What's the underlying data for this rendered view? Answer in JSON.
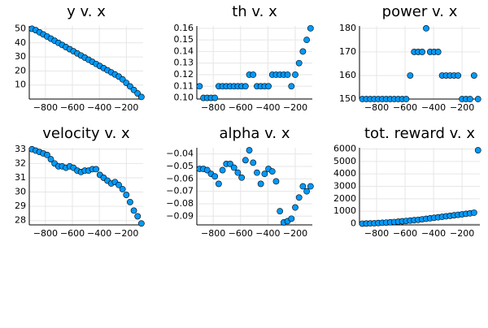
{
  "chart_data": [
    {
      "type": "scatter",
      "title": "y v. x",
      "color": "#009AFA",
      "grid": true,
      "x": [
        -900,
        -872,
        -844,
        -816,
        -788,
        -760,
        -732,
        -704,
        -676,
        -648,
        -620,
        -592,
        -564,
        -536,
        -508,
        -480,
        -452,
        -424,
        -396,
        -368,
        -340,
        -312,
        -284,
        -256,
        -228,
        -200,
        -172,
        -144,
        -116,
        -88
      ],
      "values": [
        50,
        49,
        47.5,
        46,
        44.5,
        43,
        41.5,
        40,
        38.5,
        37,
        35.5,
        34,
        32.5,
        31,
        29.5,
        28,
        26.5,
        25,
        23.5,
        22,
        20.5,
        19,
        17.5,
        16,
        14,
        11.5,
        9,
        6.5,
        4,
        1.5
      ],
      "xlim": [
        -920,
        -75
      ],
      "xticks": [
        {
          "value": -800,
          "label": "−800"
        },
        {
          "value": -600,
          "label": "−600"
        },
        {
          "value": -400,
          "label": "−400"
        },
        {
          "value": -200,
          "label": "−200"
        }
      ],
      "ylim": [
        0,
        52
      ],
      "yticks": [
        10,
        20,
        30,
        40,
        50
      ]
    },
    {
      "type": "scatter",
      "title": "th v. x",
      "color": "#009AFA",
      "grid": true,
      "x": [
        -900,
        -872,
        -844,
        -816,
        -788,
        -760,
        -732,
        -704,
        -676,
        -648,
        -620,
        -592,
        -564,
        -536,
        -508,
        -480,
        -452,
        -424,
        -396,
        -368,
        -340,
        -312,
        -284,
        -256,
        -228,
        -200,
        -172,
        -144,
        -116,
        -88
      ],
      "values": [
        0.11,
        0.1,
        0.1,
        0.1,
        0.1,
        0.11,
        0.11,
        0.11,
        0.11,
        0.11,
        0.11,
        0.11,
        0.11,
        0.12,
        0.12,
        0.11,
        0.11,
        0.11,
        0.11,
        0.12,
        0.12,
        0.12,
        0.12,
        0.12,
        0.11,
        0.12,
        0.13,
        0.14,
        0.15,
        0.16
      ],
      "xlim": [
        -920,
        -75
      ],
      "xticks": [
        {
          "value": -800,
          "label": "−800"
        },
        {
          "value": -600,
          "label": "−600"
        },
        {
          "value": -400,
          "label": "−400"
        },
        {
          "value": -200,
          "label": "−200"
        }
      ],
      "ylim": [
        0.099,
        0.162
      ],
      "yticks": [
        {
          "value": 0.1,
          "label": "0.10"
        },
        0.11,
        0.12,
        0.13,
        0.14,
        0.15,
        0.16
      ]
    },
    {
      "type": "scatter",
      "title": "power v. x",
      "color": "#009AFA",
      "grid": true,
      "x": [
        -900,
        -872,
        -844,
        -816,
        -788,
        -760,
        -732,
        -704,
        -676,
        -648,
        -620,
        -592,
        -564,
        -536,
        -508,
        -480,
        -452,
        -424,
        -396,
        -368,
        -340,
        -312,
        -284,
        -256,
        -228,
        -200,
        -172,
        -144,
        -116,
        -88
      ],
      "values": [
        150,
        150,
        150,
        150,
        150,
        150,
        150,
        150,
        150,
        150,
        150,
        150,
        160,
        170,
        170,
        170,
        180,
        170,
        170,
        170,
        160,
        160,
        160,
        160,
        160,
        150,
        150,
        150,
        160,
        150
      ],
      "xlim": [
        -920,
        -75
      ],
      "xticks": [
        {
          "value": -800,
          "label": "−800"
        },
        {
          "value": -600,
          "label": "−600"
        },
        {
          "value": -400,
          "label": "−400"
        },
        {
          "value": -200,
          "label": "−200"
        }
      ],
      "ylim": [
        150,
        181
      ],
      "yticks": [
        150,
        160,
        170,
        180
      ]
    },
    {
      "type": "scatter",
      "title": "velocity v. x",
      "color": "#009AFA",
      "grid": true,
      "x": [
        -900,
        -872,
        -844,
        -816,
        -788,
        -760,
        -732,
        -704,
        -676,
        -648,
        -620,
        -592,
        -564,
        -536,
        -508,
        -480,
        -452,
        -424,
        -396,
        -368,
        -340,
        -312,
        -284,
        -256,
        -228,
        -200,
        -172,
        -144,
        -116,
        -88
      ],
      "values": [
        33,
        32.9,
        32.8,
        32.7,
        32.6,
        32.3,
        32,
        31.8,
        31.8,
        31.7,
        31.8,
        31.7,
        31.5,
        31.4,
        31.5,
        31.5,
        31.6,
        31.6,
        31.2,
        31,
        30.8,
        30.6,
        30.7,
        30.5,
        30.2,
        29.8,
        29.3,
        28.7,
        28.3,
        27.8
      ],
      "xlim": [
        -920,
        -75
      ],
      "xticks": [
        {
          "value": -800,
          "label": "−800"
        },
        {
          "value": -600,
          "label": "−600"
        },
        {
          "value": -400,
          "label": "−400"
        },
        {
          "value": -200,
          "label": "−200"
        }
      ],
      "ylim": [
        27.7,
        33.1
      ],
      "yticks": [
        28,
        29,
        30,
        31,
        32,
        33
      ]
    },
    {
      "type": "scatter",
      "title": "alpha v. x",
      "color": "#009AFA",
      "grid": true,
      "x": [
        -900,
        -872,
        -844,
        -816,
        -788,
        -760,
        -732,
        -704,
        -676,
        -648,
        -620,
        -592,
        -564,
        -536,
        -508,
        -480,
        -452,
        -424,
        -396,
        -368,
        -340,
        -312,
        -284,
        -256,
        -228,
        -200,
        -172,
        -144,
        -116,
        -88
      ],
      "values": [
        -0.052,
        -0.052,
        -0.053,
        -0.056,
        -0.058,
        -0.064,
        -0.053,
        -0.048,
        -0.048,
        -0.051,
        -0.055,
        -0.059,
        -0.045,
        -0.037,
        -0.047,
        -0.055,
        -0.064,
        -0.056,
        -0.052,
        -0.054,
        -0.062,
        -0.086,
        -0.095,
        -0.094,
        -0.092,
        -0.083,
        -0.075,
        -0.066,
        -0.07,
        -0.066
      ],
      "xlim": [
        -920,
        -75
      ],
      "xticks": [
        {
          "value": -800,
          "label": "−800"
        },
        {
          "value": -600,
          "label": "−600"
        },
        {
          "value": -400,
          "label": "−400"
        },
        {
          "value": -200,
          "label": "−200"
        }
      ],
      "ylim": [
        -0.097,
        -0.035
      ],
      "yticks": [
        {
          "value": -0.09,
          "label": "−0.09"
        },
        {
          "value": -0.08,
          "label": "−0.08"
        },
        {
          "value": -0.07,
          "label": "−0.07"
        },
        {
          "value": -0.06,
          "label": "−0.06"
        },
        {
          "value": -0.05,
          "label": "−0.05"
        },
        {
          "value": -0.04,
          "label": "−0.04"
        }
      ]
    },
    {
      "type": "scatter",
      "title": "tot. reward v. x",
      "color": "#009AFA",
      "grid": true,
      "x": [
        -900,
        -872,
        -844,
        -816,
        -788,
        -760,
        -732,
        -704,
        -676,
        -648,
        -620,
        -592,
        -564,
        -536,
        -508,
        -480,
        -452,
        -424,
        -396,
        -368,
        -340,
        -312,
        -284,
        -256,
        -228,
        -200,
        -172,
        -144,
        -116,
        -88
      ],
      "values": [
        0,
        10,
        20,
        30,
        50,
        70,
        90,
        110,
        130,
        160,
        190,
        220,
        250,
        280,
        310,
        350,
        390,
        430,
        470,
        510,
        550,
        590,
        630,
        670,
        710,
        750,
        790,
        830,
        880,
        5900
      ],
      "xlim": [
        -920,
        -75
      ],
      "xticks": [
        {
          "value": -800,
          "label": "−800"
        },
        {
          "value": -600,
          "label": "−600"
        },
        {
          "value": -400,
          "label": "−400"
        },
        {
          "value": -200,
          "label": "−200"
        }
      ],
      "ylim": [
        -100,
        6100
      ],
      "yticks": [
        0,
        1000,
        2000,
        3000,
        4000,
        5000,
        6000
      ]
    }
  ]
}
